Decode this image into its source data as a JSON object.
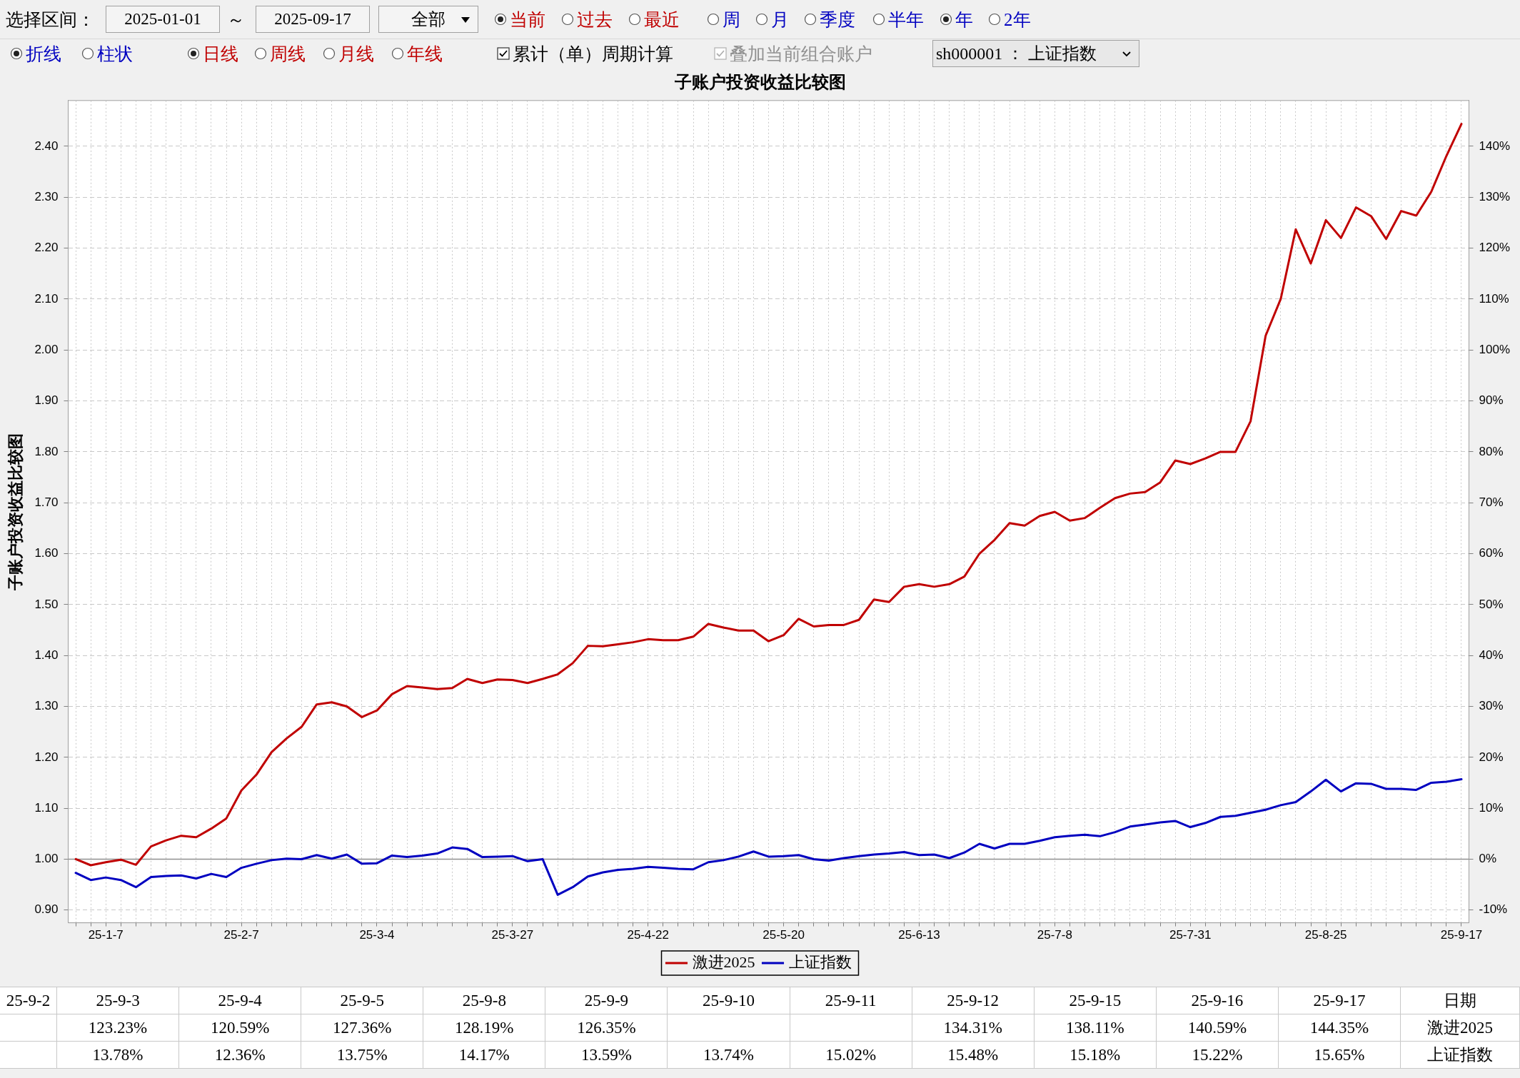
{
  "chart_data": [
    {
      "type": "line",
      "title": "子账户投资收益比较图",
      "ylabel": "子账户投资收益比较图",
      "annotations": [
        "选择区间：",
        "2025-01-01",
        "～",
        "2025-09-17",
        "全部",
        "当前",
        "过去",
        "最近",
        "周",
        "月",
        "季度",
        "半年",
        "年",
        "2年",
        "折线",
        "柱状",
        "日线",
        "周线",
        "月线",
        "年线",
        "累计（单）周期计算",
        "叠加当前组合账户",
        "sh000001 ： 上证指数"
      ],
      "categories": [
        null,
        null,
        "25-1-7",
        null,
        null,
        null,
        null,
        null,
        null,
        null,
        null,
        "25-2-7",
        null,
        null,
        null,
        null,
        null,
        null,
        null,
        null,
        "25-3-4",
        null,
        null,
        null,
        null,
        null,
        null,
        null,
        null,
        "25-3-27",
        null,
        null,
        null,
        null,
        null,
        null,
        null,
        null,
        "25-4-22",
        null,
        null,
        null,
        null,
        null,
        null,
        null,
        null,
        "25-5-20",
        null,
        null,
        null,
        null,
        null,
        null,
        null,
        null,
        "25-6-13",
        null,
        null,
        null,
        null,
        null,
        null,
        null,
        null,
        "25-7-8",
        null,
        null,
        null,
        null,
        null,
        null,
        null,
        null,
        "25-7-31",
        null,
        null,
        null,
        null,
        null,
        null,
        null,
        null,
        "25-8-25",
        null,
        null,
        null,
        null,
        null,
        null,
        null,
        null,
        "25-9-17"
      ],
      "series": [
        {
          "name": "激进2025",
          "color": "#c00000",
          "values": [
            1.0,
            0.988,
            0.994,
            0.999,
            0.989,
            1.025,
            1.037,
            1.046,
            1.043,
            1.06,
            1.08,
            1.135,
            1.166,
            1.21,
            1.237,
            1.26,
            1.304,
            1.308,
            1.3,
            1.279,
            1.292,
            1.324,
            1.34,
            1.337,
            1.334,
            1.336,
            1.354,
            1.346,
            1.353,
            1.352,
            1.346,
            1.354,
            1.363,
            1.385,
            1.419,
            1.418,
            1.422,
            1.426,
            1.432,
            1.43,
            1.43,
            1.437,
            1.462,
            1.455,
            1.449,
            1.449,
            1.428,
            1.44,
            1.472,
            1.457,
            1.46,
            1.46,
            1.47,
            1.51,
            1.505,
            1.535,
            1.54,
            1.535,
            1.54,
            1.555,
            1.6,
            1.627,
            1.66,
            1.655,
            1.674,
            1.682,
            1.665,
            1.67,
            1.69,
            1.709,
            1.718,
            1.721,
            1.74,
            1.783,
            1.776,
            1.787,
            1.8,
            1.8,
            1.86,
            2.028,
            2.1,
            2.237,
            2.17,
            2.255,
            2.22,
            2.28,
            2.263,
            2.218,
            2.273,
            2.264,
            2.311,
            2.381,
            2.444
          ]
        },
        {
          "name": "上证指数",
          "color": "#0000c0",
          "values": [
            0.973,
            0.959,
            0.964,
            0.959,
            0.945,
            0.965,
            0.967,
            0.968,
            0.962,
            0.971,
            0.965,
            0.983,
            0.991,
            0.998,
            1.001,
            1.0,
            1.008,
            1.001,
            1.009,
            0.991,
            0.992,
            1.007,
            1.004,
            1.007,
            1.011,
            1.023,
            1.02,
            1.004,
            1.005,
            1.006,
            0.996,
            1.0,
            0.93,
            0.945,
            0.966,
            0.974,
            0.979,
            0.981,
            0.985,
            0.983,
            0.981,
            0.98,
            0.994,
            0.998,
            1.005,
            1.015,
            1.005,
            1.006,
            1.008,
            1.0,
            0.997,
            1.002,
            1.006,
            1.009,
            1.011,
            1.014,
            1.008,
            1.009,
            1.002,
            1.013,
            1.03,
            1.021,
            1.03,
            1.03,
            1.036,
            1.043,
            1.046,
            1.048,
            1.045,
            1.053,
            1.064,
            1.068,
            1.072,
            1.075,
            1.063,
            1.071,
            1.083,
            1.085,
            1.091,
            1.097,
            1.106,
            1.112,
            1.133,
            1.156,
            1.133,
            1.149,
            1.148,
            1.138,
            1.138,
            1.136,
            1.15,
            1.152,
            1.157
          ]
        }
      ],
      "ylim": [
        0.875,
        2.49
      ],
      "yticks": [
        {
          "value": 0.9,
          "label": "0.90"
        },
        {
          "value": 1.0,
          "label": "1.00"
        },
        {
          "value": 1.1,
          "label": "1.10"
        },
        {
          "value": 1.2,
          "label": "1.20"
        },
        {
          "value": 1.3,
          "label": "1.30"
        },
        {
          "value": 1.4,
          "label": "1.40"
        },
        {
          "value": 1.5,
          "label": "1.50"
        },
        {
          "value": 1.6,
          "label": "1.60"
        },
        {
          "value": 1.7,
          "label": "1.70"
        },
        {
          "value": 1.8,
          "label": "1.80"
        },
        {
          "value": 1.9,
          "label": "1.90"
        },
        {
          "value": 2.0,
          "label": "2.00"
        },
        {
          "value": 2.1,
          "label": "2.10"
        },
        {
          "value": 2.2,
          "label": "2.20"
        },
        {
          "value": 2.3,
          "label": "2.30"
        },
        {
          "value": 2.4,
          "label": "2.40"
        }
      ],
      "y2lim": [
        -12.5,
        149
      ],
      "y2ticks": [
        {
          "value": -10,
          "label": "-10%"
        },
        {
          "value": 0,
          "label": "0%"
        },
        {
          "value": 10,
          "label": "10%"
        },
        {
          "value": 20,
          "label": "20%"
        },
        {
          "value": 30,
          "label": "30%"
        },
        {
          "value": 40,
          "label": "40%"
        },
        {
          "value": 50,
          "label": "50%"
        },
        {
          "value": 60,
          "label": "60%"
        },
        {
          "value": 70,
          "label": "70%"
        },
        {
          "value": 80,
          "label": "80%"
        },
        {
          "value": 90,
          "label": "90%"
        },
        {
          "value": 100,
          "label": "100%"
        },
        {
          "value": 110,
          "label": "110%"
        },
        {
          "value": 120,
          "label": "120%"
        },
        {
          "value": 130,
          "label": "130%"
        },
        {
          "value": 140,
          "label": "140%"
        }
      ],
      "ref_lines": [
        {
          "axis": "y",
          "value": 1.0,
          "color": "#909090"
        }
      ],
      "grid": true,
      "legend": "bottom"
    },
    {
      "type": "other",
      "xlabel": "日期",
      "categories": [
        "25-9-2",
        "25-9-3",
        "25-9-4",
        "25-9-5",
        "25-9-8",
        "25-9-9",
        "25-9-10",
        "25-9-11",
        "25-9-12",
        "25-9-15",
        "25-9-16",
        "25-9-17"
      ],
      "series": [
        {
          "name": "激进2025",
          "values": [
            null,
            123.23,
            120.59,
            127.36,
            128.19,
            126.35,
            null,
            null,
            134.31,
            138.11,
            140.59,
            144.35
          ],
          "value_labels": [
            null,
            "123.23%",
            "120.59%",
            "127.36%",
            "128.19%",
            "126.35%",
            null,
            null,
            "134.31%",
            "138.11%",
            "140.59%",
            "144.35%"
          ]
        },
        {
          "name": "上证指数",
          "values": [
            null,
            13.78,
            12.36,
            13.75,
            14.17,
            13.59,
            13.74,
            15.02,
            15.48,
            15.18,
            15.22,
            15.65
          ],
          "value_labels": [
            null,
            "13.78%",
            "12.36%",
            "13.75%",
            "14.17%",
            "13.59%",
            "13.74%",
            "15.02%",
            "15.48%",
            "15.18%",
            "15.22%",
            "15.65%"
          ]
        }
      ]
    }
  ]
}
